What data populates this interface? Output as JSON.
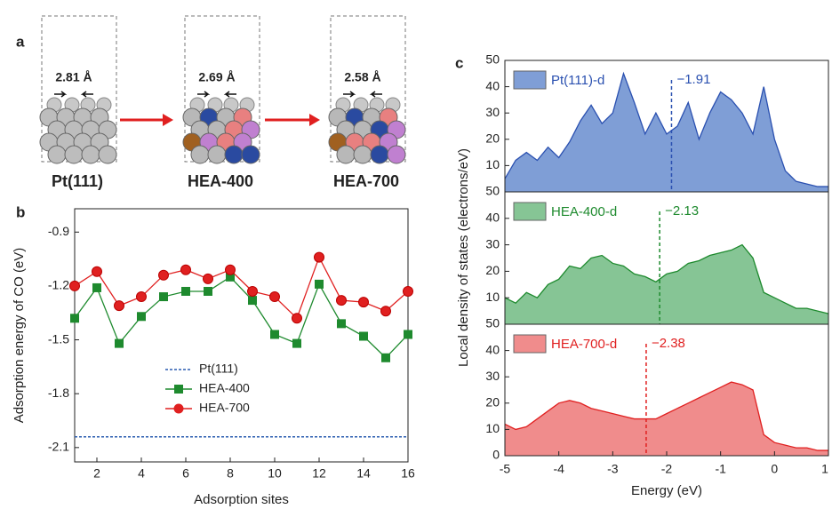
{
  "panel_a": {
    "label": "a",
    "structures": [
      {
        "distance": "2.81 Å",
        "name": "Pt(111)"
      },
      {
        "distance": "2.69 Å",
        "name": "HEA-400"
      },
      {
        "distance": "2.58 Å",
        "name": "HEA-700"
      }
    ]
  },
  "chart_data": [
    {
      "type": "line",
      "panel_label": "b",
      "xlabel": "Adsorption sites",
      "ylabel": "Adsorption energy of CO (eV)",
      "x": [
        1,
        2,
        3,
        4,
        5,
        6,
        7,
        8,
        9,
        10,
        11,
        12,
        13,
        14,
        15,
        16
      ],
      "xlim": [
        1,
        16
      ],
      "xticks": [
        2,
        4,
        6,
        8,
        10,
        12,
        14,
        16
      ],
      "ylim": [
        -2.18,
        -0.77
      ],
      "yticks": [
        -0.9,
        -1.2,
        -1.5,
        -1.8,
        -2.1
      ],
      "series": [
        {
          "name": "Pt(111)",
          "color": "#2a5cb0",
          "style": "dotted",
          "marker": "none",
          "values": [
            -2.04,
            -2.04,
            -2.04,
            -2.04,
            -2.04,
            -2.04,
            -2.04,
            -2.04,
            -2.04,
            -2.04,
            -2.04,
            -2.04,
            -2.04,
            -2.04,
            -2.04,
            -2.04
          ]
        },
        {
          "name": "HEA-400",
          "color": "#1e8a2e",
          "style": "solid",
          "marker": "square",
          "values": [
            -1.38,
            -1.21,
            -1.52,
            -1.37,
            -1.26,
            -1.23,
            -1.23,
            -1.15,
            -1.28,
            -1.47,
            -1.52,
            -1.19,
            -1.41,
            -1.48,
            -1.6,
            -1.47
          ]
        },
        {
          "name": "HEA-700",
          "color": "#e02020",
          "style": "solid",
          "marker": "circle",
          "values": [
            -1.2,
            -1.12,
            -1.31,
            -1.26,
            -1.14,
            -1.11,
            -1.16,
            -1.11,
            -1.23,
            -1.26,
            -1.38,
            -1.04,
            -1.28,
            -1.29,
            -1.34,
            -1.23
          ]
        }
      ]
    },
    {
      "type": "area",
      "panel_label": "c",
      "ylabel": "Local density of states (electrons/eV)",
      "name": "Pt(111)-d",
      "color": "#2a50b0",
      "fill": "#7f9ed6",
      "x": [
        -5,
        -4.8,
        -4.6,
        -4.4,
        -4.2,
        -4,
        -3.8,
        -3.6,
        -3.4,
        -3.2,
        -3,
        -2.8,
        -2.6,
        -2.4,
        -2.2,
        -2,
        -1.8,
        -1.6,
        -1.4,
        -1.2,
        -1,
        -0.8,
        -0.6,
        -0.4,
        -0.2,
        0,
        0.2,
        0.4,
        0.6,
        0.8,
        1
      ],
      "values": [
        5,
        12,
        15,
        12,
        17,
        13,
        19,
        27,
        33,
        26,
        30,
        45,
        34,
        22,
        30,
        22,
        25,
        34,
        20,
        30,
        38,
        35,
        30,
        22,
        40,
        20,
        8,
        4,
        3,
        2,
        2
      ],
      "xlim": [
        -5,
        1
      ],
      "ylim": [
        0,
        50
      ],
      "yticks": [
        10,
        20,
        30,
        40,
        50
      ],
      "annotation": {
        "value": -1.91,
        "label": "−1.91"
      }
    },
    {
      "type": "area",
      "name": "HEA-400-d",
      "color": "#1e8a2e",
      "fill": "#86c595",
      "x": [
        -5,
        -4.8,
        -4.6,
        -4.4,
        -4.2,
        -4,
        -3.8,
        -3.6,
        -3.4,
        -3.2,
        -3,
        -2.8,
        -2.6,
        -2.4,
        -2.2,
        -2,
        -1.8,
        -1.6,
        -1.4,
        -1.2,
        -1,
        -0.8,
        -0.6,
        -0.4,
        -0.2,
        0,
        0.2,
        0.4,
        0.6,
        0.8,
        1
      ],
      "values": [
        10,
        8,
        12,
        10,
        15,
        17,
        22,
        21,
        25,
        26,
        23,
        22,
        19,
        18,
        16,
        19,
        20,
        23,
        24,
        26,
        27,
        28,
        30,
        25,
        12,
        10,
        8,
        6,
        6,
        5,
        4
      ],
      "xlim": [
        -5,
        1
      ],
      "ylim": [
        0,
        50
      ],
      "yticks": [
        10,
        20,
        30,
        40,
        50
      ],
      "annotation": {
        "value": -2.13,
        "label": "−2.13"
      }
    },
    {
      "type": "area",
      "name": "HEA-700-d",
      "color": "#e02020",
      "fill": "#f08c8c",
      "xlabel": "Energy (eV)",
      "x": [
        -5,
        -4.8,
        -4.6,
        -4.4,
        -4.2,
        -4,
        -3.8,
        -3.6,
        -3.4,
        -3.2,
        -3,
        -2.8,
        -2.6,
        -2.4,
        -2.2,
        -2,
        -1.8,
        -1.6,
        -1.4,
        -1.2,
        -1,
        -0.8,
        -0.6,
        -0.4,
        -0.2,
        0,
        0.2,
        0.4,
        0.6,
        0.8,
        1
      ],
      "values": [
        12,
        10,
        11,
        14,
        17,
        20,
        21,
        20,
        18,
        17,
        16,
        15,
        14,
        14,
        14,
        16,
        18,
        20,
        22,
        24,
        26,
        28,
        27,
        25,
        8,
        5,
        4,
        3,
        3,
        2,
        2
      ],
      "xlim": [
        -5,
        1
      ],
      "xticks": [
        -5,
        -4,
        -3,
        -2,
        -1,
        0,
        1
      ],
      "ylim": [
        0,
        50
      ],
      "yticks": [
        0,
        10,
        20,
        30,
        40,
        50
      ],
      "annotation": {
        "value": -2.38,
        "label": "−2.38"
      }
    }
  ]
}
